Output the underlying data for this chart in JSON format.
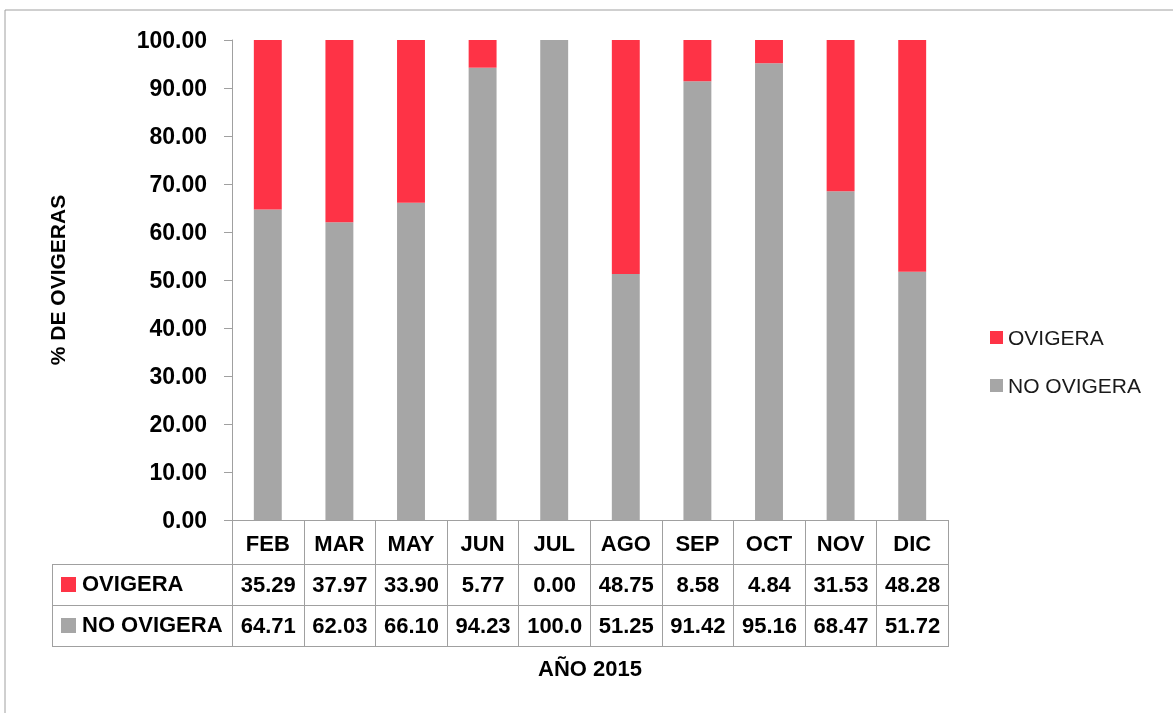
{
  "chart_data": {
    "type": "bar",
    "stacked": true,
    "ylabel": "% DE OVIGERAS",
    "annotations": [
      "AÑO 2015"
    ],
    "categories": [
      "FEB",
      "MAR",
      "MAY",
      "JUN",
      "JUL",
      "AGO",
      "SEP",
      "OCT",
      "NOV",
      "DIC"
    ],
    "series": [
      {
        "name": "NO OVIGERA",
        "color": "#a6a6a6",
        "values": [
          64.71,
          62.03,
          66.1,
          94.23,
          100.0,
          51.25,
          91.42,
          95.16,
          68.47,
          51.72
        ],
        "value_labels": [
          "64.71",
          "62.03",
          "66.10",
          "94.23",
          "100.0",
          "51.25",
          "91.42",
          "95.16",
          "68.47",
          "51.72"
        ]
      },
      {
        "name": "OVIGERA",
        "color": "#fe3346",
        "values": [
          35.29,
          37.97,
          33.9,
          5.77,
          0.0,
          48.75,
          8.58,
          4.84,
          31.53,
          48.28
        ],
        "value_labels": [
          "35.29",
          "37.97",
          "33.90",
          "5.77",
          "0.00",
          "48.75",
          "8.58",
          "4.84",
          "31.53",
          "48.28"
        ]
      }
    ],
    "ylim": [
      0,
      100
    ],
    "yticks": [
      {
        "value": 0,
        "label": "0.00"
      },
      {
        "value": 10,
        "label": "10.00"
      },
      {
        "value": 20,
        "label": "20.00"
      },
      {
        "value": 30,
        "label": "30.00"
      },
      {
        "value": 40,
        "label": "40.00"
      },
      {
        "value": 50,
        "label": "50.00"
      },
      {
        "value": 60,
        "label": "60.00"
      },
      {
        "value": 70,
        "label": "70.00"
      },
      {
        "value": 80,
        "label": "80.00"
      },
      {
        "value": 90,
        "label": "90.00"
      },
      {
        "value": 100,
        "label": "100.00"
      }
    ],
    "grid": false,
    "legend": "right"
  }
}
